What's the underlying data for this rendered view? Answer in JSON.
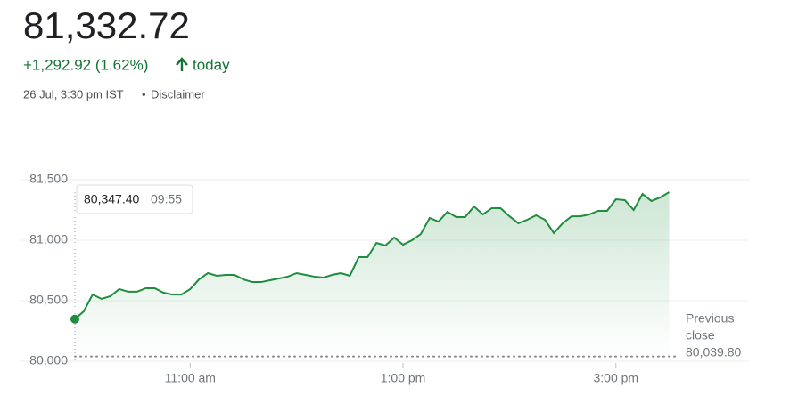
{
  "header": {
    "price": "81,332.72",
    "change": "+1,292.92 (1.62%)",
    "period": "today",
    "timestamp": "26 Jul, 3:30 pm IST",
    "separator": "•",
    "disclaimer": "Disclaimer"
  },
  "chart_data": {
    "type": "area",
    "color": "#1e8e3e",
    "x": [
      595,
      600,
      605,
      610,
      615,
      620,
      625,
      630,
      635,
      640,
      645,
      650,
      655,
      660,
      665,
      670,
      675,
      680,
      685,
      690,
      695,
      700,
      705,
      710,
      715,
      720,
      725,
      730,
      735,
      740,
      745,
      750,
      755,
      760,
      765,
      770,
      775,
      780,
      785,
      790,
      795,
      800,
      805,
      810,
      815,
      820,
      825,
      830,
      835,
      840,
      845,
      850,
      855,
      860,
      865,
      870,
      875,
      880,
      885,
      890,
      895,
      900,
      905,
      910,
      915,
      920,
      925,
      930
    ],
    "values": [
      80347.4,
      80412,
      80551,
      80515,
      80537,
      80596,
      80574,
      80574,
      80603,
      80603,
      80566,
      80551,
      80551,
      80596,
      80676,
      80728,
      80706,
      80713,
      80713,
      80676,
      80654,
      80654,
      80669,
      80684,
      80699,
      80728,
      80713,
      80699,
      80691,
      80713,
      80728,
      80706,
      80860,
      80860,
      80978,
      80956,
      81022,
      80963,
      81000,
      81051,
      81184,
      81154,
      81235,
      81191,
      81191,
      81279,
      81213,
      81265,
      81265,
      81198,
      81140,
      81169,
      81206,
      81169,
      81059,
      81140,
      81198,
      81198,
      81213,
      81243,
      81243,
      81338,
      81331,
      81250,
      81382,
      81324,
      81353,
      81397
    ],
    "xlim": [
      595,
      975
    ],
    "xticks": [
      {
        "value": 660,
        "label": "11:00 am"
      },
      {
        "value": 780,
        "label": "1:00 pm"
      },
      {
        "value": 900,
        "label": "3:00 pm"
      }
    ],
    "ylim": [
      80000,
      81500
    ],
    "yticks": [
      {
        "value": 80000,
        "label": "80,000"
      },
      {
        "value": 80500,
        "label": "80,500"
      },
      {
        "value": 81000,
        "label": "81,000"
      },
      {
        "value": 81500,
        "label": "81,500"
      }
    ],
    "grid": true,
    "tooltip": {
      "value": "80,347.40",
      "time": "09:55"
    },
    "previous_close": {
      "label_1": "Previous",
      "label_2": "close",
      "value": 80039.8,
      "value_label": "80,039.80"
    }
  }
}
